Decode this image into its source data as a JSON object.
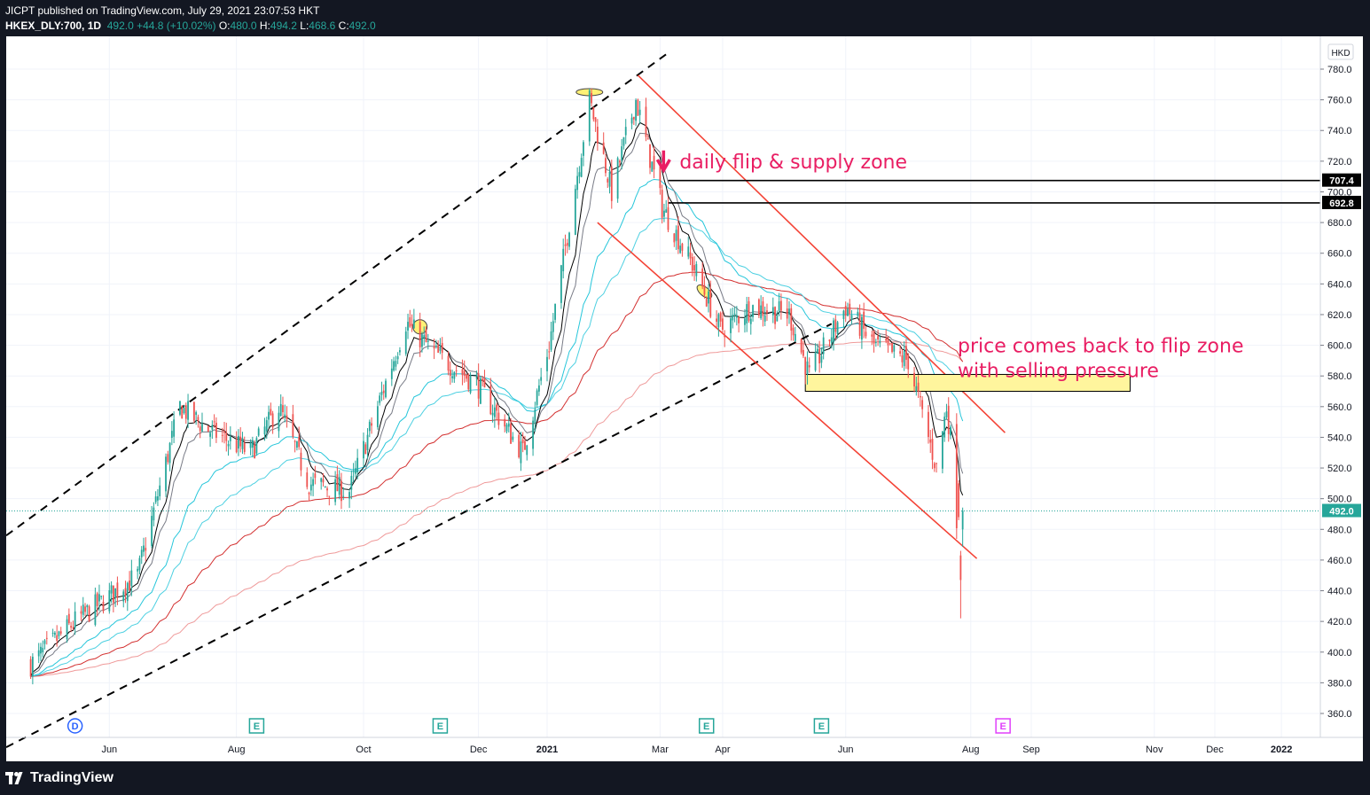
{
  "header": {
    "published": "JICPT published on TradingView.com, July 29, 2021 23:07:53 HKT",
    "symbol": "HKEX_DLY:700, 1D",
    "last": "492.0",
    "change": "+44.8 (+10.02%)",
    "o_label": "O:",
    "o": "480.0",
    "h_label": "H:",
    "h": "494.2",
    "l_label": "L:",
    "l": "468.6",
    "c_label": "C:",
    "c": "492.0"
  },
  "footer": {
    "brand": "TradingView"
  },
  "colors": {
    "up": "#26a69a",
    "down": "#ef5350",
    "grid": "#f0f3fa",
    "annotation": "#e91e63",
    "channel": "#f44336",
    "dashed": "#000000",
    "zone": "#fff59d",
    "ema_black": "#000000",
    "ema_gray": "#787b86",
    "ema_cyan": "#4dd0e1",
    "ema_teal": "#26c6da",
    "ema_red": "#d32f2f",
    "ema_pink": "#ef9a9a",
    "line_blue": "#2962ff"
  },
  "chart_data": {
    "type": "candlestick",
    "currency": "HKD",
    "ylim": [
      340,
      790
    ],
    "y_ticks": [
      "780.0",
      "760.0",
      "740.0",
      "720.0",
      "700.0",
      "680.0",
      "660.0",
      "640.0",
      "620.0",
      "600.0",
      "580.0",
      "560.0",
      "540.0",
      "520.0",
      "500.0",
      "480.0",
      "460.0",
      "440.0",
      "420.0",
      "400.0",
      "380.0",
      "360.0"
    ],
    "x_ticks": [
      {
        "label": "Jun",
        "date": "2020-06-01"
      },
      {
        "label": "Aug",
        "date": "2020-08-03"
      },
      {
        "label": "Oct",
        "date": "2020-10-05"
      },
      {
        "label": "Dec",
        "date": "2020-12-01"
      },
      {
        "label": "2021",
        "date": "2021-01-04"
      },
      {
        "label": "Mar",
        "date": "2021-03-01"
      },
      {
        "label": "Apr",
        "date": "2021-04-01"
      },
      {
        "label": "Jun",
        "date": "2021-06-01"
      },
      {
        "label": "Aug",
        "date": "2021-08-02"
      },
      {
        "label": "Sep",
        "date": "2021-09-01"
      },
      {
        "label": "Nov",
        "date": "2021-11-01"
      },
      {
        "label": "Dec",
        "date": "2021-12-01"
      },
      {
        "label": "2022",
        "date": "2022-01-03"
      }
    ],
    "price_levels": [
      {
        "label": "707.4",
        "value": 707.4
      },
      {
        "label": "692.8",
        "value": 692.8
      }
    ],
    "last_price": {
      "label": "492.0",
      "value": 492.0
    },
    "annotations": [
      {
        "text": "daily flip & supply zone",
        "date": "2021-03-08",
        "value": 720
      },
      {
        "text": "price comes back to flip zone",
        "date": "2021-07-05",
        "value": 600
      },
      {
        "text": "with selling pressure",
        "date": "2021-07-05",
        "value": 584
      }
    ],
    "zone": {
      "from": "2021-05-12",
      "to": "2021-10-20",
      "low": 570,
      "high": 581
    },
    "events": [
      {
        "label": "D",
        "date": "2020-05-15",
        "color": "#2962ff"
      },
      {
        "label": "E",
        "date": "2020-08-13",
        "color": "#26a69a"
      },
      {
        "label": "E",
        "date": "2020-11-12",
        "color": "#26a69a"
      },
      {
        "label": "E",
        "date": "2021-03-24",
        "color": "#26a69a"
      },
      {
        "label": "E",
        "date": "2021-05-20",
        "color": "#26a69a"
      },
      {
        "label": "E",
        "date": "2021-08-18",
        "color": "#e040fb"
      }
    ],
    "key_points": [
      {
        "date": "2020-04-23",
        "close": 392
      },
      {
        "date": "2020-05-15",
        "close": 420
      },
      {
        "date": "2020-06-15",
        "close": 450
      },
      {
        "date": "2020-07-06",
        "close": 560
      },
      {
        "date": "2020-07-20",
        "close": 545
      },
      {
        "date": "2020-08-10",
        "close": 530
      },
      {
        "date": "2020-08-24",
        "close": 560
      },
      {
        "date": "2020-09-08",
        "close": 510
      },
      {
        "date": "2020-09-28",
        "close": 505
      },
      {
        "date": "2020-10-12",
        "close": 560
      },
      {
        "date": "2020-10-26",
        "close": 615
      },
      {
        "date": "2020-11-09",
        "close": 595
      },
      {
        "date": "2020-11-30",
        "close": 575
      },
      {
        "date": "2020-12-23",
        "close": 530
      },
      {
        "date": "2021-01-05",
        "close": 600
      },
      {
        "date": "2021-01-25",
        "close": 760
      },
      {
        "date": "2021-02-05",
        "close": 700
      },
      {
        "date": "2021-02-17",
        "close": 760
      },
      {
        "date": "2021-03-02",
        "close": 690
      },
      {
        "date": "2021-03-18",
        "close": 650
      },
      {
        "date": "2021-03-31",
        "close": 610
      },
      {
        "date": "2021-04-15",
        "close": 625
      },
      {
        "date": "2021-05-04",
        "close": 620
      },
      {
        "date": "2021-05-14",
        "close": 580
      },
      {
        "date": "2021-06-01",
        "close": 625
      },
      {
        "date": "2021-06-15",
        "close": 600
      },
      {
        "date": "2021-07-02",
        "close": 590
      },
      {
        "date": "2021-07-08",
        "close": 560
      },
      {
        "date": "2021-07-16",
        "close": 520
      },
      {
        "date": "2021-07-21",
        "close": 560
      },
      {
        "date": "2021-07-23",
        "close": 540
      },
      {
        "date": "2021-07-26",
        "close": 488
      },
      {
        "date": "2021-07-27",
        "close": 450
      },
      {
        "date": "2021-07-28",
        "close": 447
      },
      {
        "date": "2021-07-29",
        "close": 492
      }
    ]
  }
}
